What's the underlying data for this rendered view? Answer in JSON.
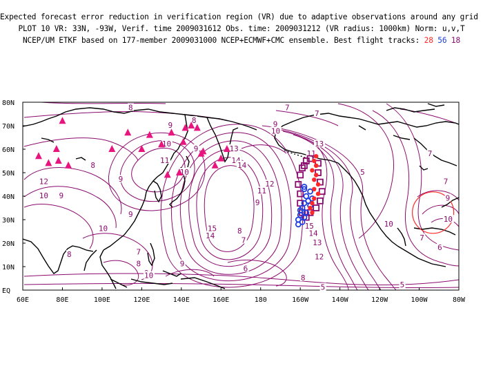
{
  "header": {
    "line1": "Expected forecast error reduction in verification region (VR) due to adaptive observations around any grid point.",
    "line2": "PLOT 10 VR: 33N, -93W, Verif. time 2009031612 Obs. time: 2009031212 (VR radius: 1000km) Norm: u,v,T",
    "line3_prefix": "NCEP/UM ETKF based on 177-member 2009031000 NCEP+ECMWF+CMC ensemble. Best flight tracks: ",
    "track_red": "28",
    "track_blue": "56",
    "track_purple": "18"
  },
  "axes": {
    "lat_labels": [
      "80N",
      "70N",
      "60N",
      "50N",
      "40N",
      "30N",
      "20N",
      "10N",
      "EQ"
    ],
    "lon_labels": [
      "60E",
      "80E",
      "100E",
      "120E",
      "140E",
      "160E",
      "180",
      "160W",
      "140W",
      "120W",
      "100W",
      "80W"
    ]
  },
  "contour_labels": [
    {
      "text": "8",
      "lon": 115,
      "lat": 77.5
    },
    {
      "text": "7",
      "lon": 194,
      "lat": 77.5
    },
    {
      "text": "7",
      "lon": 209,
      "lat": 75
    },
    {
      "text": "9",
      "lon": 135,
      "lat": 70
    },
    {
      "text": "8",
      "lon": 147,
      "lat": 72
    },
    {
      "text": "9",
      "lon": 148,
      "lat": 60
    },
    {
      "text": "10",
      "lon": 187,
      "lat": 67.5
    },
    {
      "text": "9",
      "lon": 188,
      "lat": 70.5
    },
    {
      "text": "10",
      "lon": 132,
      "lat": 62
    },
    {
      "text": "11",
      "lon": 131,
      "lat": 55
    },
    {
      "text": "10",
      "lon": 141,
      "lat": 50
    },
    {
      "text": "13",
      "lon": 166,
      "lat": 60
    },
    {
      "text": "14",
      "lon": 167,
      "lat": 55
    },
    {
      "text": "14",
      "lon": 170,
      "lat": 53
    },
    {
      "text": "12",
      "lon": 184,
      "lat": 45
    },
    {
      "text": "11",
      "lon": 180,
      "lat": 42
    },
    {
      "text": "9",
      "lon": 179,
      "lat": 37
    },
    {
      "text": "15",
      "lon": 155,
      "lat": 26
    },
    {
      "text": "14",
      "lon": 154,
      "lat": 23
    },
    {
      "text": "8",
      "lon": 170,
      "lat": 25
    },
    {
      "text": "7",
      "lon": 172,
      "lat": 21
    },
    {
      "text": "6",
      "lon": 173,
      "lat": 9
    },
    {
      "text": "8",
      "lon": 96,
      "lat": 53
    },
    {
      "text": "9",
      "lon": 110,
      "lat": 47
    },
    {
      "text": "12",
      "lon": 70,
      "lat": 46
    },
    {
      "text": "10",
      "lon": 70,
      "lat": 40
    },
    {
      "text": "9",
      "lon": 80,
      "lat": 40
    },
    {
      "text": "9",
      "lon": 115,
      "lat": 32
    },
    {
      "text": "10",
      "lon": 100,
      "lat": 26
    },
    {
      "text": "8",
      "lon": 84,
      "lat": 15
    },
    {
      "text": "7",
      "lon": 119,
      "lat": 16
    },
    {
      "text": "8",
      "lon": 119,
      "lat": 11
    },
    {
      "text": "9",
      "lon": 123,
      "lat": 7
    },
    {
      "text": "9",
      "lon": 141,
      "lat": 11
    },
    {
      "text": "10",
      "lon": 123,
      "lat": 6
    },
    {
      "text": "8",
      "lon": 202,
      "lat": 5
    },
    {
      "text": "5",
      "lon": 212,
      "lat": 1
    },
    {
      "text": "5",
      "lon": 252,
      "lat": 2
    },
    {
      "text": "6",
      "lon": 271,
      "lat": 18
    },
    {
      "text": "7",
      "lon": 262,
      "lat": 22
    },
    {
      "text": "10",
      "lon": 244,
      "lat": 28
    },
    {
      "text": "13",
      "lon": 208,
      "lat": 20
    },
    {
      "text": "12",
      "lon": 209,
      "lat": 14
    },
    {
      "text": "14",
      "lon": 206,
      "lat": 24
    },
    {
      "text": "15",
      "lon": 204,
      "lat": 27
    },
    {
      "text": "7",
      "lon": 274,
      "lat": 46
    },
    {
      "text": "7",
      "lon": 266,
      "lat": 58
    },
    {
      "text": "10",
      "lon": 274,
      "lat": 30
    },
    {
      "text": "9",
      "lon": 275,
      "lat": 39
    },
    {
      "text": "13",
      "lon": 209,
      "lat": 62
    },
    {
      "text": "11",
      "lon": 205,
      "lat": 58
    },
    {
      "text": "5",
      "lon": 232,
      "lat": 50
    }
  ],
  "sonde_sites": [
    {
      "lon": 68,
      "lat": 57
    },
    {
      "lon": 73,
      "lat": 54
    },
    {
      "lon": 78,
      "lat": 55
    },
    {
      "lon": 83,
      "lat": 53
    },
    {
      "lon": 77,
      "lat": 60
    },
    {
      "lon": 80,
      "lat": 72
    },
    {
      "lon": 105,
      "lat": 60
    },
    {
      "lon": 113,
      "lat": 67
    },
    {
      "lon": 120,
      "lat": 60
    },
    {
      "lon": 124,
      "lat": 66
    },
    {
      "lon": 130,
      "lat": 62
    },
    {
      "lon": 135,
      "lat": 67
    },
    {
      "lon": 141,
      "lat": 63
    },
    {
      "lon": 148,
      "lat": 69
    },
    {
      "lon": 151,
      "lat": 59
    },
    {
      "lon": 145,
      "lat": 70
    },
    {
      "lon": 150,
      "lat": 58
    },
    {
      "lon": 157,
      "lat": 53
    },
    {
      "lon": 160,
      "lat": 56
    },
    {
      "lon": 163,
      "lat": 60
    },
    {
      "lon": 139,
      "lat": 50
    },
    {
      "lon": 133,
      "lat": 49
    },
    {
      "lon": 142,
      "lat": 69
    }
  ],
  "tracks": {
    "red": {
      "color": "#ff2828",
      "points": [
        [
          208,
          57
        ],
        [
          207,
          55
        ],
        [
          208,
          53
        ],
        [
          206,
          51
        ],
        [
          208,
          49
        ],
        [
          207,
          47
        ],
        [
          209,
          45
        ],
        [
          207,
          43
        ],
        [
          209,
          41
        ],
        [
          207,
          39
        ],
        [
          206,
          37
        ],
        [
          205,
          35
        ],
        [
          206,
          33
        ]
      ]
    },
    "blue": {
      "color": "#1f3fe0",
      "points": [
        [
          202,
          43
        ],
        [
          205,
          42
        ],
        [
          203,
          40
        ],
        [
          206,
          39
        ],
        [
          202,
          37
        ],
        [
          205,
          36
        ],
        [
          201,
          35
        ],
        [
          203,
          33
        ],
        [
          200,
          32
        ],
        [
          202,
          31
        ],
        [
          199,
          30
        ],
        [
          201,
          29
        ],
        [
          199,
          28
        ],
        [
          202,
          44
        ],
        [
          204,
          38
        ],
        [
          200,
          34
        ]
      ]
    },
    "purple": {
      "color": "#8b0a6e",
      "points": [
        [
          202,
          53
        ],
        [
          205,
          56
        ],
        [
          209,
          54
        ],
        [
          209,
          50
        ],
        [
          210,
          46
        ],
        [
          211,
          42
        ],
        [
          210,
          38
        ],
        [
          208,
          35
        ],
        [
          205,
          33
        ],
        [
          203,
          31
        ],
        [
          201,
          33
        ],
        [
          200,
          37
        ],
        [
          200,
          41
        ],
        [
          199,
          45
        ],
        [
          200,
          49
        ],
        [
          201,
          52
        ],
        [
          203,
          55
        ]
      ]
    }
  },
  "verification_region": {
    "lon": 267,
    "lat": 33,
    "color": "#ff2828"
  },
  "colors": {
    "contour": "#8b0a6e",
    "coast": "#000000",
    "sonde": "#e8157e"
  }
}
